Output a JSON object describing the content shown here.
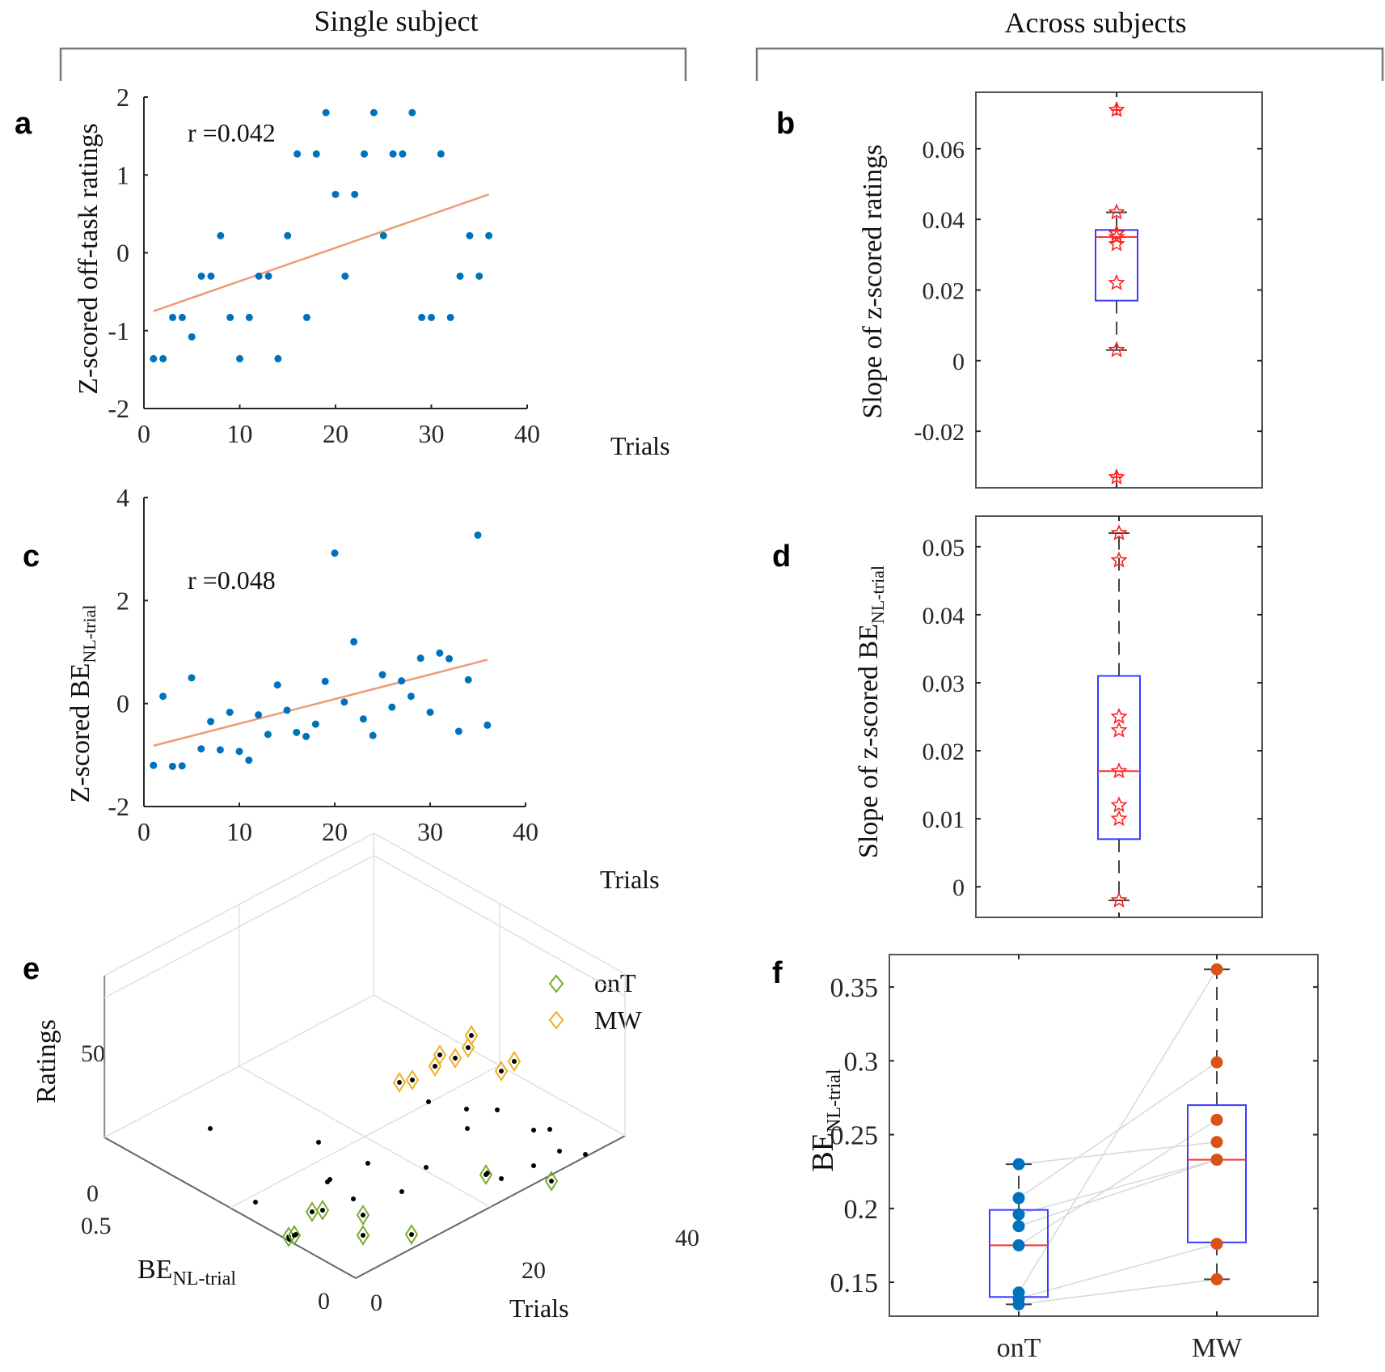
{
  "headers": {
    "left": "Single subject",
    "right": "Across subjects"
  },
  "colors": {
    "scatter_blue": "#0072BD",
    "fit_line": "#EE9A7A",
    "box_blue": "#3B3BFF",
    "median_red": "#FF3030",
    "star_red": "#FF2020",
    "onT_green": "#77AC30",
    "MW_yellow": "#EDB120",
    "MW_orange": "#D95319",
    "axis": "#262626",
    "pair_line": "#D8D8D8"
  },
  "chart_data": [
    {
      "panel": "a",
      "type": "scatter",
      "annotation": "r =0.042",
      "xlabel": "Trials",
      "ylabel": "Z-scored off-task ratings",
      "xlim": [
        0,
        40
      ],
      "ylim": [
        -2,
        2
      ],
      "xticks": [
        "0",
        "10",
        "20",
        "30",
        "40"
      ],
      "yticks": [
        "-2",
        "-1",
        "0",
        "1",
        "2"
      ],
      "x": [
        1,
        2,
        3,
        4,
        5,
        6,
        7,
        8,
        9,
        10,
        11,
        12,
        13,
        14,
        15,
        16,
        17,
        18,
        19,
        20,
        21,
        22,
        23,
        24,
        25,
        26,
        27,
        28,
        29,
        30,
        31,
        32,
        33,
        34,
        35,
        36
      ],
      "y": [
        -1.36,
        -1.36,
        -0.83,
        -0.83,
        -1.08,
        -0.3,
        -0.3,
        0.22,
        -0.83,
        -1.36,
        -0.83,
        -0.3,
        -0.3,
        -1.36,
        0.22,
        1.27,
        -0.83,
        1.27,
        1.8,
        0.75,
        -0.3,
        0.75,
        1.27,
        1.8,
        0.22,
        1.27,
        1.27,
        1.8,
        -0.83,
        -0.83,
        1.27,
        -0.83,
        -0.3,
        0.22,
        -0.3,
        0.22
      ],
      "fit": {
        "x": [
          1,
          36
        ],
        "y": [
          -0.75,
          0.75
        ]
      }
    },
    {
      "panel": "b",
      "type": "box",
      "ylabel": "Slope of z-scored ratings",
      "ylim": [
        -0.036,
        0.076
      ],
      "yticks": [
        "-0.02",
        "0",
        "0.02",
        "0.04",
        "0.06"
      ],
      "ytick_values": [
        -0.02,
        0,
        0.02,
        0.04,
        0.06
      ],
      "box": {
        "q1": 0.017,
        "median": 0.035,
        "q3": 0.037,
        "whisker_low": 0.003,
        "whisker_high": 0.042,
        "outliers": [
          0.071,
          -0.033
        ]
      },
      "points": [
        0.071,
        0.042,
        0.036,
        0.035,
        0.033,
        0.022,
        0.003,
        -0.033
      ]
    },
    {
      "panel": "c",
      "type": "scatter",
      "annotation": "r =0.048",
      "xlabel": "Trials",
      "ylabel_main": "Z-scored BE",
      "ylabel_sub": "NL-trial",
      "xlim": [
        0,
        40
      ],
      "ylim": [
        -2,
        4
      ],
      "xticks": [
        "0",
        "10",
        "20",
        "30",
        "40"
      ],
      "yticks": [
        "-2",
        "0",
        "2",
        "4"
      ],
      "x": [
        1,
        2,
        3,
        4,
        5,
        6,
        7,
        8,
        9,
        10,
        11,
        12,
        13,
        14,
        15,
        16,
        17,
        18,
        19,
        20,
        21,
        22,
        23,
        24,
        25,
        26,
        27,
        28,
        29,
        30,
        31,
        32,
        33,
        34,
        35,
        36
      ],
      "y": [
        -1.2,
        0.14,
        -1.22,
        -1.21,
        0.5,
        -0.88,
        -0.35,
        -0.9,
        -0.17,
        -0.93,
        -1.1,
        -0.22,
        -0.6,
        0.36,
        -0.13,
        -0.56,
        -0.64,
        -0.4,
        0.43,
        2.92,
        0.03,
        1.2,
        -0.3,
        -0.62,
        0.56,
        -0.07,
        0.44,
        0.14,
        0.88,
        -0.17,
        0.98,
        0.87,
        -0.54,
        0.46,
        3.27,
        -0.42
      ],
      "fit": {
        "x": [
          1,
          36
        ],
        "y": [
          -0.82,
          0.85
        ]
      }
    },
    {
      "panel": "d",
      "type": "box",
      "ylabel_main": "Slope of z-scored BE",
      "ylabel_sub": "NL-trial",
      "ylim": [
        -0.0045,
        0.0545
      ],
      "yticks": [
        "0",
        "0.01",
        "0.02",
        "0.03",
        "0.04",
        "0.05"
      ],
      "ytick_values": [
        0,
        0.01,
        0.02,
        0.03,
        0.04,
        0.05
      ],
      "box": {
        "q1": 0.007,
        "median": 0.017,
        "q3": 0.031,
        "whisker_low": -0.002,
        "whisker_high": 0.052,
        "outliers": []
      },
      "points": [
        0.052,
        0.048,
        0.025,
        0.023,
        0.017,
        0.012,
        0.01,
        -0.002
      ]
    },
    {
      "panel": "e",
      "type": "scatter3d",
      "xlabel": "Trials",
      "ylabel_main": "BE",
      "ylabel_sub": "NL-trial",
      "zlabel": "Ratings",
      "xticks": [
        "0",
        "20",
        "40"
      ],
      "yticks": [
        "0",
        "0.5"
      ],
      "zticks": [
        "0",
        "50"
      ],
      "legend": [
        {
          "label": "onT",
          "marker": "diamond",
          "color": "#77AC30"
        },
        {
          "label": "MW",
          "marker": "diamond",
          "color": "#EDB120"
        }
      ],
      "legend_position": "top-right",
      "note": "All trials shown as black dots; onT trials circled green near rating 0, MW trials circled yellow at high ratings"
    },
    {
      "panel": "f",
      "type": "box",
      "ylabel_main": "BE",
      "ylabel_sub": "NL-trial",
      "categories": [
        "onT",
        "MW"
      ],
      "ylim": [
        0.127,
        0.372
      ],
      "yticks": [
        "0.15",
        "0.2",
        "0.25",
        "0.3",
        "0.35"
      ],
      "ytick_values": [
        0.15,
        0.2,
        0.25,
        0.3,
        0.35
      ],
      "series": [
        {
          "name": "onT",
          "values": [
            0.23,
            0.207,
            0.196,
            0.188,
            0.175,
            0.143,
            0.139,
            0.135
          ],
          "box": {
            "q1": 0.14,
            "median": 0.175,
            "q3": 0.199,
            "whisker_low": 0.135,
            "whisker_high": 0.23
          }
        },
        {
          "name": "MW",
          "values": [
            0.245,
            0.299,
            0.233,
            0.233,
            0.26,
            0.362,
            0.176,
            0.152
          ],
          "box": {
            "q1": 0.177,
            "median": 0.233,
            "q3": 0.27,
            "whisker_low": 0.152,
            "whisker_high": 0.362
          }
        }
      ],
      "pairs_note": "Grey lines connect each subject's onT value to MW value"
    }
  ],
  "panel_labels": [
    "a",
    "b",
    "c",
    "d",
    "e",
    "f"
  ]
}
